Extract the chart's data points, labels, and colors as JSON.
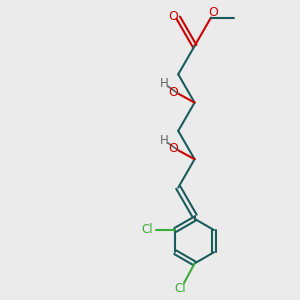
{
  "bg_color": "#ebebeb",
  "bond_color": "#1a5c5c",
  "oxygen_color": "#cc0000",
  "chlorine_color": "#3daa3d",
  "hydrogen_color": "#666666",
  "line_width": 1.5,
  "fig_size": [
    3.0,
    3.0
  ],
  "dpi": 100,
  "xlim": [
    0,
    10
  ],
  "ylim": [
    0,
    10
  ]
}
